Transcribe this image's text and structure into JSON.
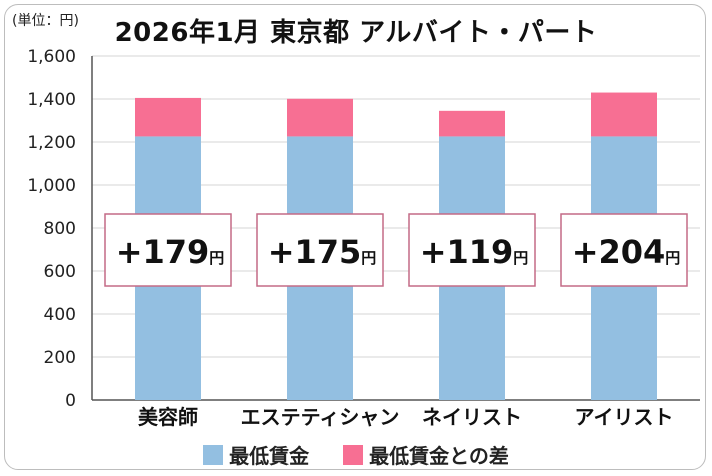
{
  "chart_data": {
    "type": "bar",
    "stacked": true,
    "title": "2026年1月 東京都 アルバイト・パート",
    "unit_label": "(単位：円)",
    "categories": [
      "美容師",
      "エステティシャン",
      "ネイリスト",
      "アイリスト"
    ],
    "series": [
      {
        "name": "最低賃金",
        "values": [
          1226,
          1226,
          1226,
          1226
        ],
        "color": "#93bfe1"
      },
      {
        "name": "最低賃金との差",
        "values": [
          179,
          175,
          119,
          204
        ],
        "color": "#f76f93"
      }
    ],
    "annotations": [
      "+179",
      "+175",
      "+119",
      "+204"
    ],
    "annotation_unit": "円",
    "ylim": [
      0,
      1600
    ],
    "yticks": [
      "0",
      "200",
      "400",
      "600",
      "800",
      "1,000",
      "1,200",
      "1,400",
      "1,600"
    ],
    "grid": true,
    "legend_position": "bottom"
  }
}
